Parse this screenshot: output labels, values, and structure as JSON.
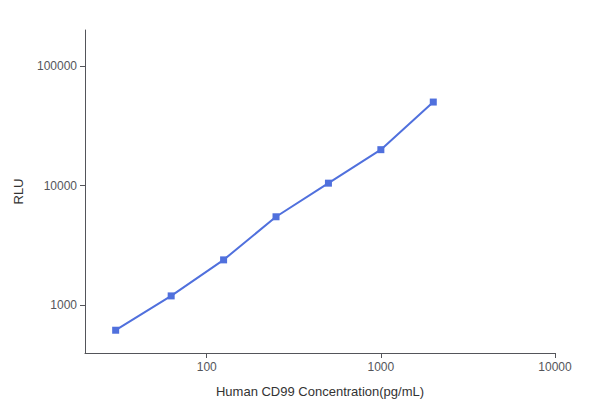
{
  "chart_data": {
    "type": "line",
    "x": [
      30,
      62.5,
      125,
      250,
      500,
      1000,
      2000
    ],
    "values": [
      620,
      1200,
      2400,
      5500,
      10500,
      20000,
      50000
    ],
    "xlabel": "Human CD99 Concentration(pg/mL)",
    "ylabel": "RLU",
    "xlim": [
      20,
      10000
    ],
    "ylim": [
      400,
      200000
    ],
    "xticks": [
      100,
      1000,
      10000
    ],
    "yticks": [
      1000,
      10000,
      100000
    ],
    "log": true,
    "grid": false,
    "marker": "square",
    "line_style": "solid"
  }
}
